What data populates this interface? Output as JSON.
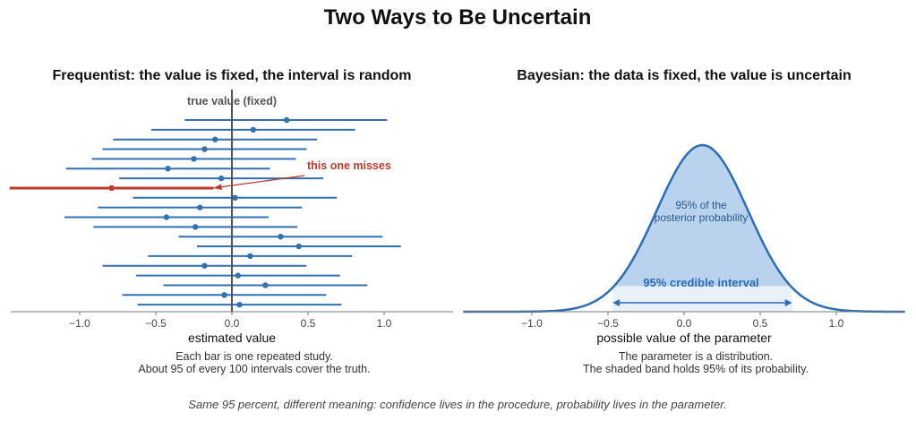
{
  "title": "Two Ways to Be Uncertain",
  "footer": "Same 95 percent, different meaning: confidence lives in the procedure, probability lives in the parameter.",
  "colors": {
    "interval": "#3070b3",
    "miss": "#c0392b",
    "true_line": "#555555",
    "density_fill": "#b9d3ee",
    "band_fill": "#e8f0f8"
  },
  "left": {
    "subtitle": "Frequentist: the value is fixed, the interval is random",
    "xlabel": "estimated value",
    "caption_lines": [
      "Each bar is one repeated study.",
      "About 95 of every 100 intervals cover the truth."
    ],
    "true_label": "true value (fixed)",
    "miss_label": "this one misses",
    "xticks": [
      "−1.0",
      "−0.5",
      "0.0",
      "0.5",
      "1.0"
    ]
  },
  "right": {
    "subtitle": "Bayesian: the data is fixed, the value is uncertain",
    "xlabel": "possible value of the parameter",
    "caption_lines": [
      "The parameter is a distribution.",
      "The shaded band holds 95% of its probability."
    ],
    "mass_label_lines": [
      "95% of the",
      "posterior probability"
    ],
    "ci_label": "95% credible interval",
    "xticks": [
      "−1.0",
      "−0.5",
      "0.0",
      "0.5",
      "1.0"
    ]
  },
  "chart_data": [
    {
      "type": "interval",
      "title": "Frequentist: the value is fixed, the interval is random",
      "xlabel": "estimated value",
      "xlim": [
        -1.45,
        1.45
      ],
      "true_value": 0.0,
      "intervals": [
        {
          "est": 0.36,
          "lo": -0.31,
          "hi": 1.02,
          "covers": true
        },
        {
          "est": 0.14,
          "lo": -0.53,
          "hi": 0.81,
          "covers": true
        },
        {
          "est": -0.11,
          "lo": -0.78,
          "hi": 0.56,
          "covers": true
        },
        {
          "est": -0.18,
          "lo": -0.85,
          "hi": 0.49,
          "covers": true
        },
        {
          "est": -0.25,
          "lo": -0.92,
          "hi": 0.42,
          "covers": true
        },
        {
          "est": -0.42,
          "lo": -1.09,
          "hi": 0.25,
          "covers": true
        },
        {
          "est": -0.07,
          "lo": -0.74,
          "hi": 0.6,
          "covers": true
        },
        {
          "est": -0.79,
          "lo": -1.46,
          "hi": -0.12,
          "covers": false
        },
        {
          "est": 0.02,
          "lo": -0.65,
          "hi": 0.69,
          "covers": true
        },
        {
          "est": -0.21,
          "lo": -0.88,
          "hi": 0.46,
          "covers": true
        },
        {
          "est": -0.43,
          "lo": -1.1,
          "hi": 0.24,
          "covers": true
        },
        {
          "est": -0.24,
          "lo": -0.91,
          "hi": 0.43,
          "covers": true
        },
        {
          "est": 0.32,
          "lo": -0.35,
          "hi": 0.99,
          "covers": true
        },
        {
          "est": 0.44,
          "lo": -0.23,
          "hi": 1.11,
          "covers": true
        },
        {
          "est": 0.12,
          "lo": -0.55,
          "hi": 0.79,
          "covers": true
        },
        {
          "est": -0.18,
          "lo": -0.85,
          "hi": 0.49,
          "covers": true
        },
        {
          "est": 0.04,
          "lo": -0.63,
          "hi": 0.71,
          "covers": true
        },
        {
          "est": 0.22,
          "lo": -0.45,
          "hi": 0.89,
          "covers": true
        },
        {
          "est": -0.05,
          "lo": -0.72,
          "hi": 0.62,
          "covers": true
        },
        {
          "est": 0.05,
          "lo": -0.62,
          "hi": 0.72,
          "covers": true
        }
      ]
    },
    {
      "type": "area",
      "title": "Bayesian: the data is fixed, the value is uncertain",
      "xlabel": "possible value of the parameter",
      "xlim": [
        -1.45,
        1.45
      ],
      "distribution": "normal",
      "mean": 0.12,
      "sd": 0.3,
      "credible_interval": [
        -0.47,
        0.71
      ]
    }
  ]
}
